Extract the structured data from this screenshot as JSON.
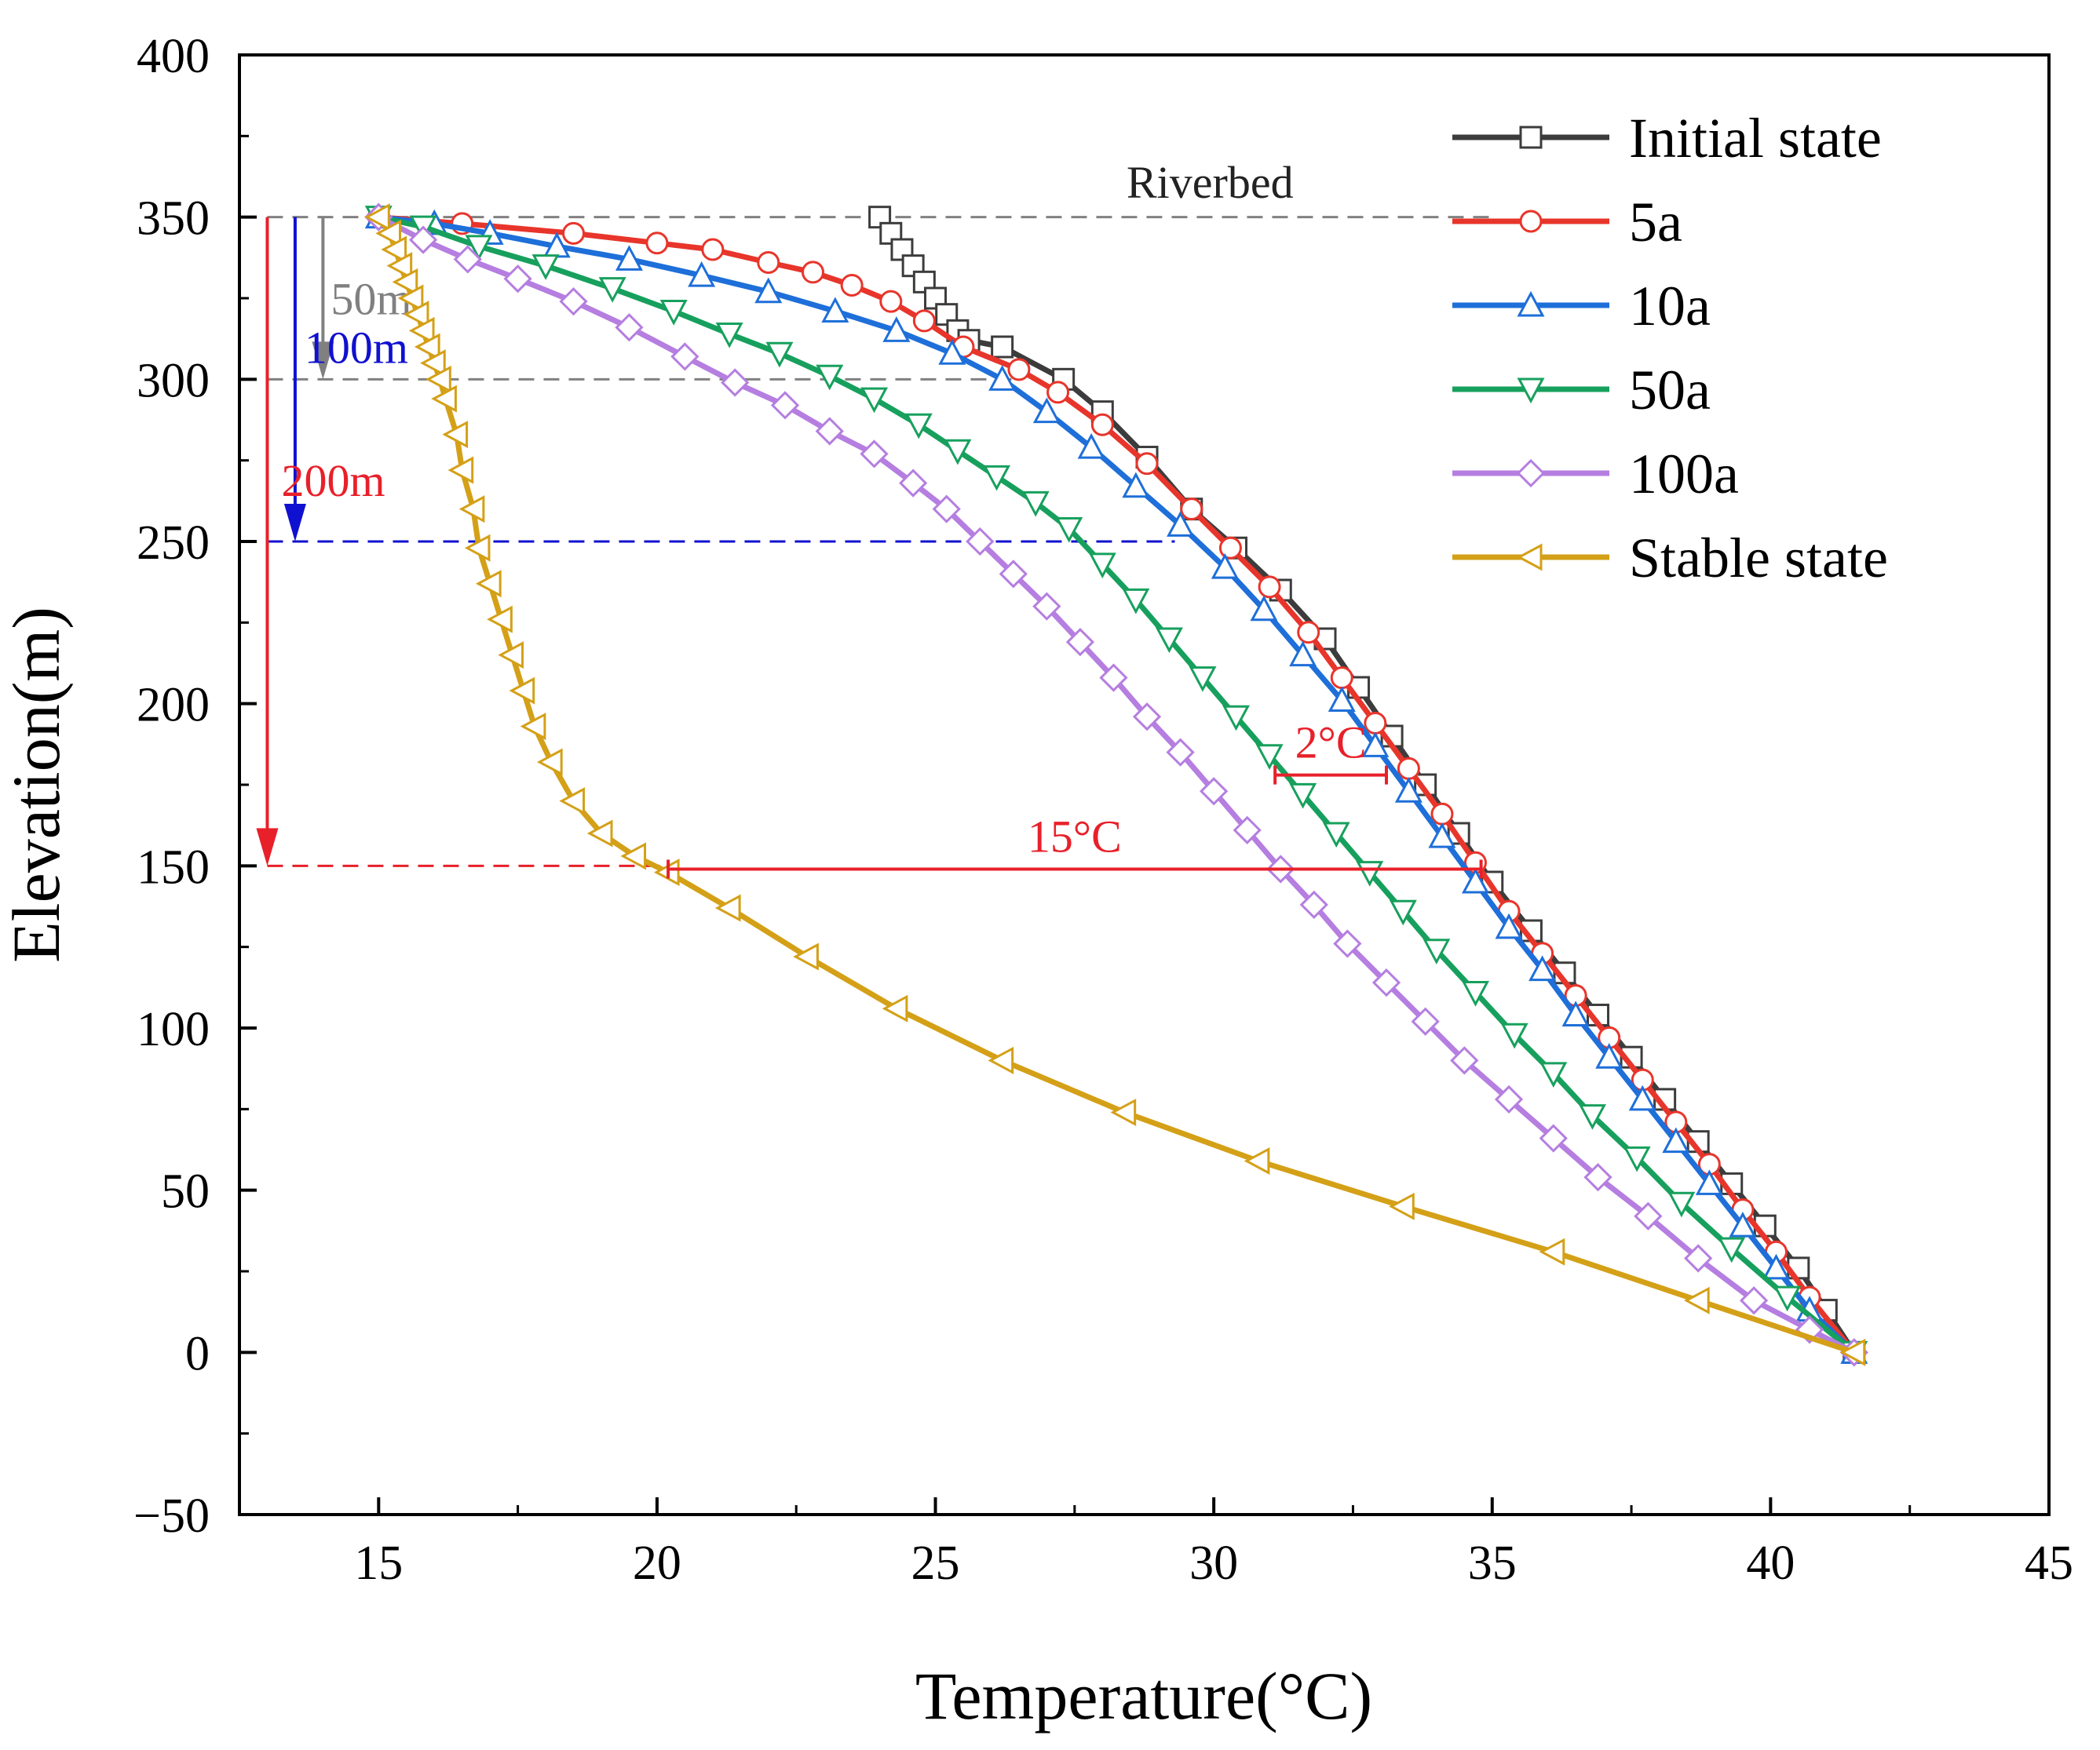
{
  "chart_data": {
    "type": "line",
    "xlabel": "Temperature(°C)",
    "ylabel": "Elevation(m)",
    "xlim": [
      12.5,
      45
    ],
    "ylim": [
      -50,
      400
    ],
    "xticks": [
      15,
      20,
      25,
      30,
      35,
      40,
      45
    ],
    "yticks": [
      -50,
      0,
      50,
      100,
      150,
      200,
      250,
      300,
      350,
      400
    ],
    "xtick_labels": [
      "15",
      "20",
      "25",
      "30",
      "35",
      "40",
      "45"
    ],
    "ytick_labels": [
      "−50",
      "0",
      "50",
      "100",
      "150",
      "200",
      "250",
      "300",
      "350",
      "400"
    ],
    "legend_position": "top-right",
    "series": [
      {
        "name": "Initial state",
        "color": "#3c3c3c",
        "marker": "square",
        "points": [
          [
            24.0,
            350
          ],
          [
            24.2,
            345
          ],
          [
            24.4,
            340
          ],
          [
            24.6,
            335
          ],
          [
            24.8,
            330
          ],
          [
            25.0,
            325
          ],
          [
            25.2,
            320
          ],
          [
            25.4,
            315
          ],
          [
            25.6,
            312
          ],
          [
            26.2,
            310
          ],
          [
            27.3,
            300
          ],
          [
            28.0,
            290
          ],
          [
            28.8,
            276
          ],
          [
            29.6,
            260
          ],
          [
            30.4,
            248
          ],
          [
            31.2,
            235
          ],
          [
            32.0,
            220
          ],
          [
            32.6,
            205
          ],
          [
            33.2,
            190
          ],
          [
            33.8,
            175
          ],
          [
            34.4,
            160
          ],
          [
            35.0,
            145
          ],
          [
            35.7,
            130
          ],
          [
            36.3,
            117
          ],
          [
            36.9,
            104
          ],
          [
            37.5,
            91
          ],
          [
            38.1,
            78
          ],
          [
            38.7,
            65
          ],
          [
            39.3,
            52
          ],
          [
            39.9,
            39
          ],
          [
            40.5,
            26
          ],
          [
            41.0,
            13
          ],
          [
            41.5,
            0
          ]
        ]
      },
      {
        "name": "5a",
        "color": "#e8352b",
        "marker": "circle",
        "points": [
          [
            15.0,
            350
          ],
          [
            16.5,
            348
          ],
          [
            18.5,
            345
          ],
          [
            20.0,
            342
          ],
          [
            21.0,
            340
          ],
          [
            22.0,
            336
          ],
          [
            22.8,
            333
          ],
          [
            23.5,
            329
          ],
          [
            24.2,
            324
          ],
          [
            24.8,
            318
          ],
          [
            25.5,
            310
          ],
          [
            26.5,
            303
          ],
          [
            27.2,
            296
          ],
          [
            28.0,
            286
          ],
          [
            28.8,
            274
          ],
          [
            29.6,
            260
          ],
          [
            30.3,
            248
          ],
          [
            31.0,
            236
          ],
          [
            31.7,
            222
          ],
          [
            32.3,
            208
          ],
          [
            32.9,
            194
          ],
          [
            33.5,
            180
          ],
          [
            34.1,
            166
          ],
          [
            34.7,
            151
          ],
          [
            35.3,
            136
          ],
          [
            35.9,
            123
          ],
          [
            36.5,
            110
          ],
          [
            37.1,
            97
          ],
          [
            37.7,
            84
          ],
          [
            38.3,
            71
          ],
          [
            38.9,
            58
          ],
          [
            39.5,
            44
          ],
          [
            40.1,
            31
          ],
          [
            40.7,
            17
          ],
          [
            41.5,
            0
          ]
        ]
      },
      {
        "name": "10a",
        "color": "#1e6fd9",
        "marker": "triangle-up",
        "points": [
          [
            15.0,
            350
          ],
          [
            16.0,
            348
          ],
          [
            17.0,
            345
          ],
          [
            18.2,
            341
          ],
          [
            19.5,
            337
          ],
          [
            20.8,
            332
          ],
          [
            22.0,
            327
          ],
          [
            23.2,
            321
          ],
          [
            24.3,
            315
          ],
          [
            25.3,
            308
          ],
          [
            26.2,
            300
          ],
          [
            27.0,
            290
          ],
          [
            27.8,
            279
          ],
          [
            28.6,
            267
          ],
          [
            29.4,
            255
          ],
          [
            30.2,
            242
          ],
          [
            30.9,
            229
          ],
          [
            31.6,
            215
          ],
          [
            32.3,
            201
          ],
          [
            32.9,
            187
          ],
          [
            33.5,
            173
          ],
          [
            34.1,
            159
          ],
          [
            34.7,
            145
          ],
          [
            35.3,
            131
          ],
          [
            35.9,
            118
          ],
          [
            36.5,
            104
          ],
          [
            37.1,
            91
          ],
          [
            37.7,
            78
          ],
          [
            38.3,
            65
          ],
          [
            38.9,
            52
          ],
          [
            39.5,
            39
          ],
          [
            40.1,
            26
          ],
          [
            40.7,
            13
          ],
          [
            41.5,
            0
          ]
        ]
      },
      {
        "name": "50a",
        "color": "#17a05d",
        "marker": "triangle-down",
        "points": [
          [
            15.0,
            350
          ],
          [
            15.8,
            347
          ],
          [
            16.8,
            341
          ],
          [
            18.0,
            335
          ],
          [
            19.2,
            328
          ],
          [
            20.3,
            321
          ],
          [
            21.3,
            314
          ],
          [
            22.2,
            308
          ],
          [
            23.1,
            301
          ],
          [
            23.9,
            294
          ],
          [
            24.7,
            286
          ],
          [
            25.4,
            278
          ],
          [
            26.1,
            270
          ],
          [
            26.8,
            262
          ],
          [
            27.4,
            254
          ],
          [
            28.0,
            243
          ],
          [
            28.6,
            232
          ],
          [
            29.2,
            220
          ],
          [
            29.8,
            208
          ],
          [
            30.4,
            196
          ],
          [
            31.0,
            184
          ],
          [
            31.6,
            172
          ],
          [
            32.2,
            160
          ],
          [
            32.8,
            148
          ],
          [
            33.4,
            136
          ],
          [
            34.0,
            124
          ],
          [
            34.7,
            111
          ],
          [
            35.4,
            98
          ],
          [
            36.1,
            86
          ],
          [
            36.8,
            73
          ],
          [
            37.6,
            60
          ],
          [
            38.4,
            46
          ],
          [
            39.3,
            32
          ],
          [
            40.3,
            17
          ],
          [
            41.5,
            0
          ]
        ]
      },
      {
        "name": "100a",
        "color": "#b57ee0",
        "marker": "diamond",
        "points": [
          [
            15.0,
            350
          ],
          [
            15.8,
            343
          ],
          [
            16.6,
            337
          ],
          [
            17.5,
            331
          ],
          [
            18.5,
            324
          ],
          [
            19.5,
            316
          ],
          [
            20.5,
            307
          ],
          [
            21.4,
            299
          ],
          [
            22.3,
            292
          ],
          [
            23.1,
            284
          ],
          [
            23.9,
            277
          ],
          [
            24.6,
            268
          ],
          [
            25.2,
            260
          ],
          [
            25.8,
            250
          ],
          [
            26.4,
            240
          ],
          [
            27.0,
            230
          ],
          [
            27.6,
            219
          ],
          [
            28.2,
            208
          ],
          [
            28.8,
            196
          ],
          [
            29.4,
            185
          ],
          [
            30.0,
            173
          ],
          [
            30.6,
            161
          ],
          [
            31.2,
            149
          ],
          [
            31.8,
            138
          ],
          [
            32.4,
            126
          ],
          [
            33.1,
            114
          ],
          [
            33.8,
            102
          ],
          [
            34.5,
            90
          ],
          [
            35.3,
            78
          ],
          [
            36.1,
            66
          ],
          [
            36.9,
            54
          ],
          [
            37.8,
            42
          ],
          [
            38.7,
            29
          ],
          [
            39.7,
            16
          ],
          [
            40.7,
            7
          ],
          [
            41.5,
            0
          ]
        ]
      },
      {
        "name": "Stable state",
        "color": "#d4a017",
        "marker": "triangle-left",
        "points": [
          [
            15.0,
            350
          ],
          [
            15.2,
            345
          ],
          [
            15.3,
            340
          ],
          [
            15.4,
            335
          ],
          [
            15.5,
            330
          ],
          [
            15.6,
            325
          ],
          [
            15.7,
            320
          ],
          [
            15.8,
            315
          ],
          [
            15.9,
            310
          ],
          [
            16.0,
            305
          ],
          [
            16.1,
            300
          ],
          [
            16.2,
            294
          ],
          [
            16.4,
            283
          ],
          [
            16.5,
            272
          ],
          [
            16.7,
            260
          ],
          [
            16.8,
            248
          ],
          [
            17.0,
            237
          ],
          [
            17.2,
            226
          ],
          [
            17.4,
            215
          ],
          [
            17.6,
            204
          ],
          [
            17.8,
            193
          ],
          [
            18.1,
            182
          ],
          [
            18.5,
            170
          ],
          [
            19.0,
            160
          ],
          [
            19.6,
            153
          ],
          [
            20.2,
            148
          ],
          [
            21.3,
            137
          ],
          [
            22.7,
            122
          ],
          [
            24.3,
            106
          ],
          [
            26.2,
            90
          ],
          [
            28.4,
            74
          ],
          [
            30.8,
            59
          ],
          [
            33.4,
            45
          ],
          [
            36.1,
            31
          ],
          [
            38.7,
            16
          ],
          [
            41.5,
            0
          ]
        ]
      }
    ],
    "guide_lines": [
      {
        "y": 350,
        "x_from": 13.0,
        "x_to": 35.0,
        "color": "#808080"
      },
      {
        "y": 300,
        "x_from": 13.0,
        "x_to": 26.5,
        "color": "#808080"
      },
      {
        "y": 250,
        "x_from": 13.0,
        "x_to": 29.3,
        "color": "#1010d0"
      },
      {
        "y": 150,
        "x_from": 13.0,
        "x_to": 20.2,
        "color": "#e8202a"
      }
    ],
    "depth_arrows": [
      {
        "label": "50m",
        "x": 14.0,
        "y_from": 350,
        "y_to": 300,
        "color": "#808080"
      },
      {
        "label": "100m",
        "x": 13.5,
        "y_from": 350,
        "y_to": 250,
        "color": "#1010d0"
      },
      {
        "label": "200m",
        "x": 13.0,
        "y_from": 350,
        "y_to": 150,
        "color": "#e8202a"
      }
    ],
    "gap_markers": [
      {
        "label": "2°C",
        "y": 178,
        "x_from": 31.1,
        "x_to": 33.1,
        "color": "#e8202a"
      },
      {
        "label": "15°C",
        "y": 149,
        "x_from": 20.2,
        "x_to": 34.8,
        "color": "#e8202a"
      }
    ],
    "annotations": {
      "riverbed": "Riverbed"
    }
  }
}
